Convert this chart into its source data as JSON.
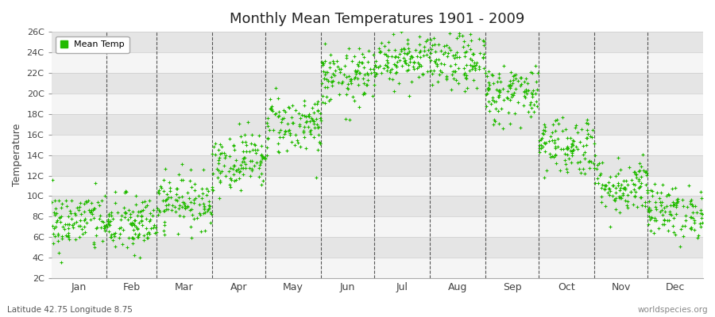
{
  "title": "Monthly Mean Temperatures 1901 - 2009",
  "ylabel": "Temperature",
  "xlabel_bottom_left": "Latitude 42.75 Longitude 8.75",
  "xlabel_bottom_right": "worldspecies.org",
  "legend_label": "Mean Temp",
  "marker_color": "#22bb00",
  "marker_size": 9,
  "bg_color": "#ffffff",
  "plot_bg_alt1": "#f0f0f0",
  "plot_bg_alt2": "#e0e0e0",
  "ytick_labels": [
    "2C",
    "4C",
    "6C",
    "8C",
    "10C",
    "12C",
    "14C",
    "16C",
    "18C",
    "20C",
    "22C",
    "24C",
    "26C"
  ],
  "ytick_values": [
    2,
    4,
    6,
    8,
    10,
    12,
    14,
    16,
    18,
    20,
    22,
    24,
    26
  ],
  "ylim": [
    2,
    26
  ],
  "month_names": [
    "Jan",
    "Feb",
    "Mar",
    "Apr",
    "May",
    "Jun",
    "Jul",
    "Aug",
    "Sep",
    "Oct",
    "Nov",
    "Dec"
  ],
  "month_days": [
    31,
    28,
    31,
    30,
    31,
    30,
    31,
    31,
    30,
    31,
    30,
    31
  ],
  "month_means": [
    7.5,
    7.2,
    9.5,
    13.5,
    17.0,
    21.5,
    23.5,
    23.0,
    20.0,
    15.0,
    11.0,
    8.5
  ],
  "month_stds": [
    1.5,
    1.5,
    1.3,
    1.4,
    1.5,
    1.4,
    1.3,
    1.4,
    1.5,
    1.5,
    1.4,
    1.3
  ],
  "n_years": 109,
  "seed": 42,
  "vline_color": "#555555",
  "grid_color_light": "#f5f5f5",
  "grid_color_dark": "#e5e5e5"
}
